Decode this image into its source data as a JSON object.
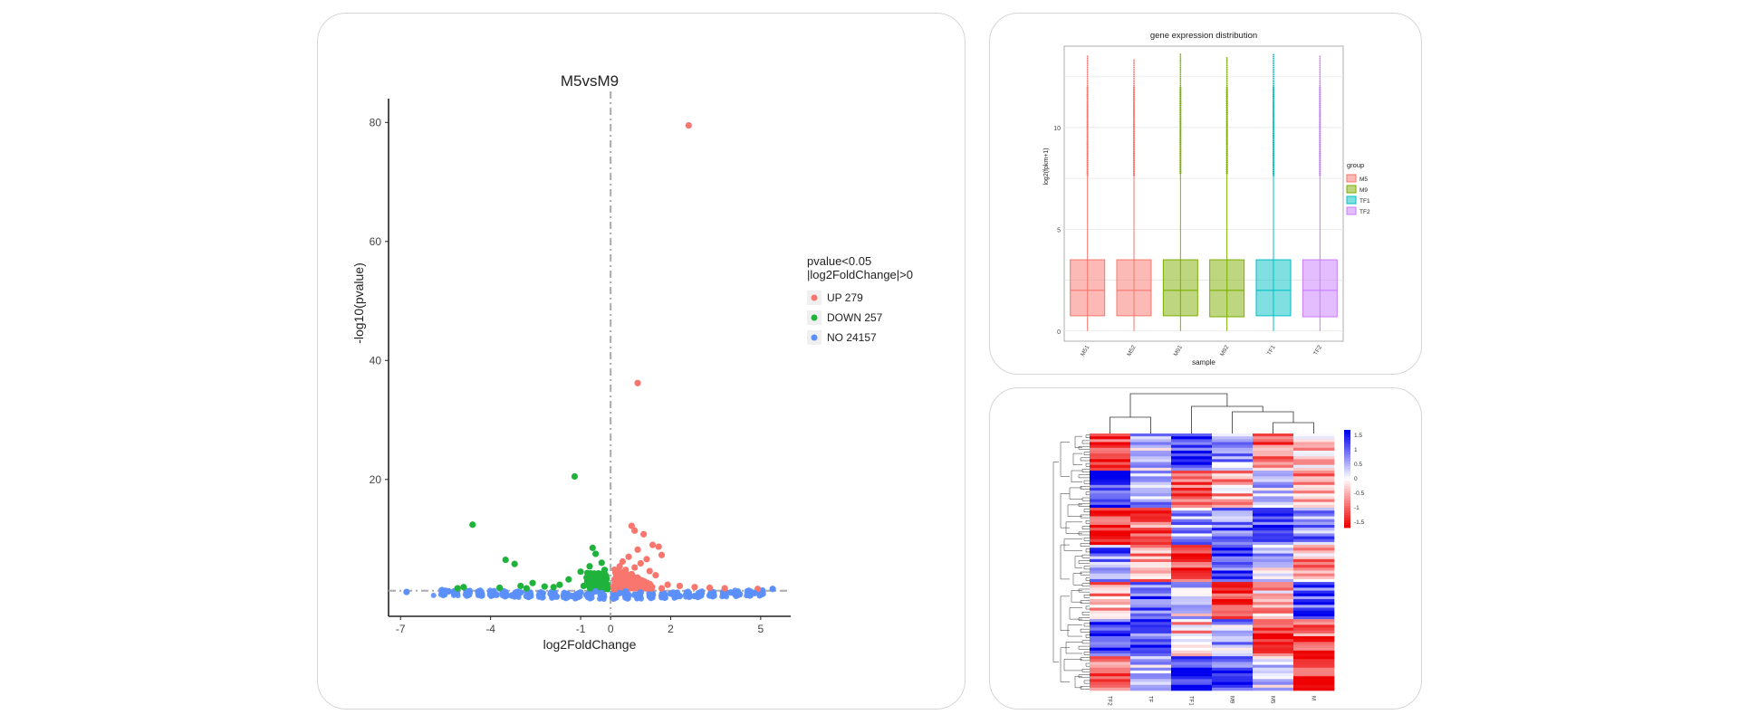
{
  "colors": {
    "up": "#f8766d",
    "down": "#1fb33c",
    "no": "#5b8ff9",
    "m5": "#f8766d",
    "m9": "#7cae00",
    "tf1": "#00bfc4",
    "tf2": "#c77cff",
    "heat_high": "#1010ee",
    "heat_low": "#ee1010"
  },
  "chart_data": [
    {
      "type": "scatter",
      "title": "M5vsM9",
      "xlabel": "log2FoldChange",
      "ylabel": "-log10(pvalue)",
      "xlim": [
        -7.4,
        6.0
      ],
      "ylim": [
        -3,
        84
      ],
      "x_ticks": [
        -7,
        -4,
        -1,
        0,
        2,
        5
      ],
      "y_ticks": [
        20,
        40,
        60,
        80
      ],
      "thresholds": {
        "pvalue_line": 1.3,
        "fc_line": 0
      },
      "legend": {
        "title_line1": "pvalue<0.05",
        "title_line2": "|log2FoldChange|>0",
        "items": [
          {
            "key": "up",
            "label": "UP 279"
          },
          {
            "key": "down",
            "label": "DOWN 257"
          },
          {
            "key": "no",
            "label": "NO 24157"
          }
        ]
      },
      "series": [
        {
          "name": "UP",
          "points": [
            [
              2.6,
              79.5
            ],
            [
              0.9,
              36.2
            ],
            [
              0.7,
              12.2
            ],
            [
              0.8,
              11.4
            ],
            [
              1.1,
              10.8
            ],
            [
              1.4,
              9.0
            ],
            [
              1.6,
              8.7
            ],
            [
              0.9,
              8.2
            ],
            [
              1.7,
              7.3
            ],
            [
              0.6,
              7.0
            ],
            [
              1.2,
              6.6
            ],
            [
              0.4,
              6.2
            ],
            [
              1.0,
              5.9
            ],
            [
              0.3,
              5.4
            ],
            [
              0.8,
              5.2
            ],
            [
              0.5,
              4.8
            ],
            [
              1.3,
              4.6
            ],
            [
              0.2,
              4.3
            ],
            [
              0.7,
              4.1
            ],
            [
              1.5,
              3.9
            ],
            [
              0.4,
              3.6
            ],
            [
              0.9,
              3.5
            ],
            [
              0.25,
              3.2
            ],
            [
              0.6,
              3.0
            ],
            [
              1.1,
              2.9
            ],
            [
              0.35,
              2.7
            ],
            [
              0.15,
              2.5
            ],
            [
              0.8,
              2.4
            ],
            [
              1.9,
              2.3
            ],
            [
              0.5,
              2.2
            ],
            [
              2.3,
              2.1
            ],
            [
              0.1,
              2.0
            ],
            [
              1.3,
              2.0
            ],
            [
              2.8,
              1.9
            ],
            [
              0.3,
              1.9
            ],
            [
              3.3,
              1.8
            ],
            [
              0.7,
              1.8
            ],
            [
              1.7,
              1.7
            ],
            [
              3.8,
              1.7
            ],
            [
              4.9,
              1.6
            ]
          ]
        },
        {
          "name": "DOWN",
          "points": [
            [
              -1.2,
              20.5
            ],
            [
              -4.6,
              12.4
            ],
            [
              -0.6,
              8.5
            ],
            [
              -3.5,
              6.5
            ],
            [
              -0.5,
              7.5
            ],
            [
              -3.2,
              5.8
            ],
            [
              -0.3,
              6.0
            ],
            [
              -0.7,
              5.4
            ],
            [
              -0.2,
              4.8
            ],
            [
              -1.0,
              4.5
            ],
            [
              -0.4,
              4.2
            ],
            [
              -0.15,
              3.8
            ],
            [
              -0.8,
              3.5
            ],
            [
              -1.4,
              3.2
            ],
            [
              -0.3,
              3.0
            ],
            [
              -2.6,
              2.6
            ],
            [
              -0.55,
              2.6
            ],
            [
              -0.12,
              2.4
            ],
            [
              -1.7,
              2.3
            ],
            [
              -3.0,
              2.1
            ],
            [
              -0.9,
              2.1
            ],
            [
              -2.2,
              2.0
            ],
            [
              -0.35,
              2.0
            ],
            [
              -4.9,
              1.9
            ],
            [
              -1.9,
              1.9
            ],
            [
              -3.7,
              1.8
            ],
            [
              -0.6,
              1.8
            ],
            [
              -5.1,
              1.7
            ],
            [
              -2.8,
              1.7
            ],
            [
              -0.1,
              1.7
            ]
          ]
        },
        {
          "name": "NO",
          "points": [
            [
              -6.8,
              1.1
            ],
            [
              5.4,
              1.6
            ],
            [
              -5.4,
              1.2
            ],
            [
              -4.8,
              0.9
            ],
            [
              -4.3,
              0.7
            ],
            [
              -3.8,
              0.6
            ],
            [
              -3.3,
              0.5
            ],
            [
              -2.8,
              0.4
            ],
            [
              -2.3,
              0.4
            ],
            [
              -1.8,
              0.3
            ],
            [
              -1.3,
              0.4
            ],
            [
              -0.8,
              0.6
            ],
            [
              -0.3,
              0.9
            ],
            [
              0.3,
              0.9
            ],
            [
              0.8,
              0.6
            ],
            [
              1.3,
              0.4
            ],
            [
              1.8,
              0.3
            ],
            [
              2.3,
              0.4
            ],
            [
              2.8,
              0.4
            ],
            [
              3.3,
              0.5
            ],
            [
              3.8,
              0.6
            ],
            [
              4.3,
              0.7
            ],
            [
              4.8,
              0.9
            ],
            [
              -0.5,
              1.2
            ],
            [
              0.5,
              1.2
            ],
            [
              -1.0,
              1.0
            ],
            [
              1.0,
              1.0
            ],
            [
              -2.0,
              0.8
            ],
            [
              2.0,
              0.8
            ],
            [
              -3.0,
              1.0
            ],
            [
              3.0,
              1.0
            ],
            [
              -4.0,
              1.0
            ],
            [
              4.0,
              1.0
            ]
          ]
        }
      ]
    },
    {
      "type": "box",
      "title": "gene expression distribution",
      "xlabel": "sample",
      "ylabel": "log2(fpkm+1)",
      "ylim": [
        -0.5,
        14
      ],
      "y_ticks": [
        0,
        5,
        10
      ],
      "legend_title": "group",
      "legend_items": [
        {
          "key": "m5",
          "label": "M5"
        },
        {
          "key": "m9",
          "label": "M9"
        },
        {
          "key": "tf1",
          "label": "TF1"
        },
        {
          "key": "tf2",
          "label": "TF2"
        }
      ],
      "samples": [
        {
          "label": "M51",
          "group": "m5",
          "min": 0,
          "q1": 0.75,
          "median": 2.0,
          "q3": 3.5,
          "whisker_high": 7.6,
          "max": 13.5
        },
        {
          "label": "M52",
          "group": "m5",
          "min": 0,
          "q1": 0.75,
          "median": 2.0,
          "q3": 3.5,
          "whisker_high": 7.6,
          "max": 13.4
        },
        {
          "label": "M91",
          "group": "m9",
          "min": 0,
          "q1": 0.75,
          "median": 2.0,
          "q3": 3.5,
          "whisker_high": 7.7,
          "max": 13.6
        },
        {
          "label": "M92",
          "group": "m9",
          "min": 0,
          "q1": 0.7,
          "median": 2.0,
          "q3": 3.5,
          "whisker_high": 7.7,
          "max": 13.5
        },
        {
          "label": "TF1",
          "group": "tf1",
          "min": 0,
          "q1": 0.75,
          "median": 2.0,
          "q3": 3.5,
          "whisker_high": 7.6,
          "max": 13.6
        },
        {
          "label": "TF2",
          "group": "tf2",
          "min": 0,
          "q1": 0.7,
          "median": 2.0,
          "q3": 3.5,
          "whisker_high": 7.6,
          "max": 13.5
        }
      ]
    },
    {
      "type": "heatmap",
      "columns": [
        "TF2",
        "TF",
        "TF1",
        "M9",
        "M5",
        "M"
      ],
      "column_values_note": "row-scaled expression, range -1.5 to 1.5",
      "color_scale_ticks": [
        "1.5",
        "1",
        "0.5",
        "0",
        "-0.5",
        "-1",
        "-1.5"
      ],
      "value_range": [
        -1.5,
        1.5
      ],
      "n_rows": 90
    }
  ]
}
